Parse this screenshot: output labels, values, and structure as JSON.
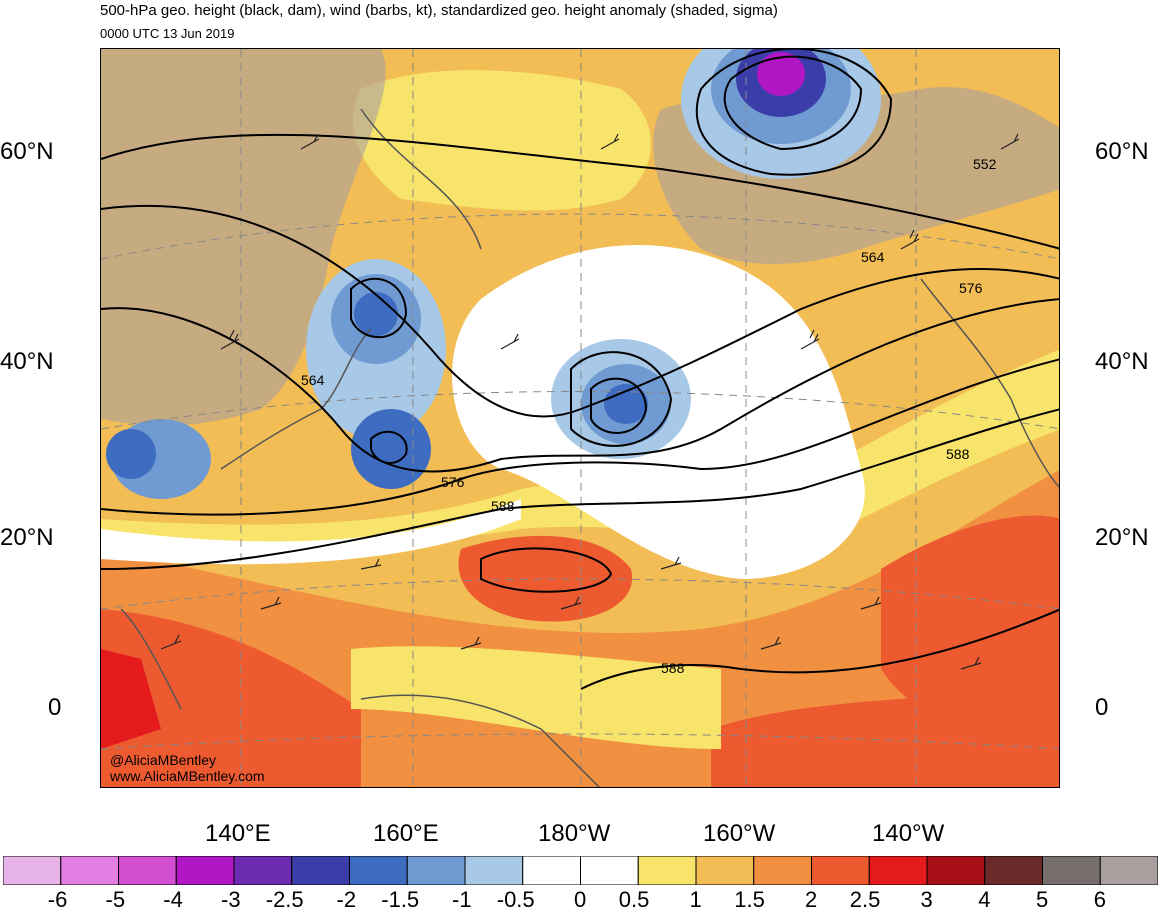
{
  "title": "500-hPa geo. height (black, dam), wind (barbs, kt), standardized geo. height anomaly (shaded, sigma)",
  "subtitle": "0000 UTC 13 Jun 2019",
  "lat_labels": [
    "60°N",
    "40°N",
    "20°N",
    "0"
  ],
  "lon_labels": [
    "140°E",
    "160°E",
    "180°W",
    "160°W",
    "140°W"
  ],
  "contour_labels": [
    "552",
    "564",
    "576",
    "576",
    "588",
    "588",
    "588",
    "564"
  ],
  "credits": [
    "@AliciaMBentley",
    "www.AliciaMBentley.com"
  ],
  "colorbar": {
    "colors": [
      "#e8b3e8",
      "#e37fe3",
      "#d24fd2",
      "#b016c4",
      "#6c2bb0",
      "#3b3ea8",
      "#3e6cc0",
      "#6f9ad2",
      "#a7c8e6",
      "#ffffff",
      "#ffffff",
      "#f8e46a",
      "#f2bd55",
      "#f09040",
      "#ee5a30",
      "#e41a1c",
      "#a50f15",
      "#6b2a2a",
      "#776e6e",
      "#a99f9f"
    ],
    "labels": [
      "-6",
      "-5",
      "-4",
      "-3",
      "-2.5",
      "-2",
      "-1.5",
      "-1",
      "-0.5",
      "0",
      "0.5",
      "1",
      "1.5",
      "2",
      "2.5",
      "3",
      "4",
      "5",
      "6"
    ]
  }
}
